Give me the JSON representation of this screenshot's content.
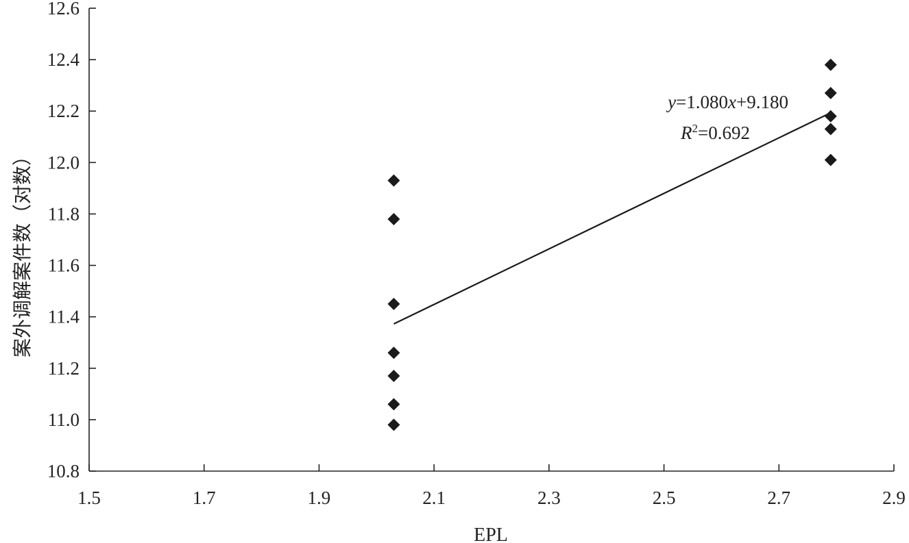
{
  "chart_data": {
    "type": "scatter",
    "xlabel": "EPL",
    "ylabel": "案外调解案件数（对数）",
    "xlim": [
      1.5,
      2.9
    ],
    "ylim": [
      10.8,
      12.6
    ],
    "x_ticks": [
      "1.5",
      "1.7",
      "1.9",
      "2.1",
      "2.3",
      "2.5",
      "2.7",
      "2.9"
    ],
    "y_ticks": [
      "10.8",
      "11.0",
      "11.2",
      "11.4",
      "11.6",
      "11.8",
      "12.0",
      "12.2",
      "12.4",
      "12.6"
    ],
    "points": [
      {
        "x": 2.03,
        "y": 11.93
      },
      {
        "x": 2.03,
        "y": 11.78
      },
      {
        "x": 2.03,
        "y": 11.45
      },
      {
        "x": 2.03,
        "y": 11.26
      },
      {
        "x": 2.03,
        "y": 11.17
      },
      {
        "x": 2.03,
        "y": 11.06
      },
      {
        "x": 2.03,
        "y": 10.98
      },
      {
        "x": 2.79,
        "y": 12.38
      },
      {
        "x": 2.79,
        "y": 12.27
      },
      {
        "x": 2.79,
        "y": 12.18
      },
      {
        "x": 2.79,
        "y": 12.13
      },
      {
        "x": 2.79,
        "y": 12.01
      }
    ],
    "trendline": {
      "x_start": 2.03,
      "x_end": 2.79,
      "slope": 1.08,
      "intercept": 9.18,
      "equation": {
        "y_var": "y",
        "eq_mid": "=1.080",
        "x_var": "x",
        "eq_tail": "+9.180"
      },
      "r_squared": {
        "r_var": "R",
        "sup": "2",
        "value": "=0.692"
      }
    },
    "marker": "diamond",
    "marker_color": "#1a1a1a",
    "line_color": "#1a1a1a"
  }
}
